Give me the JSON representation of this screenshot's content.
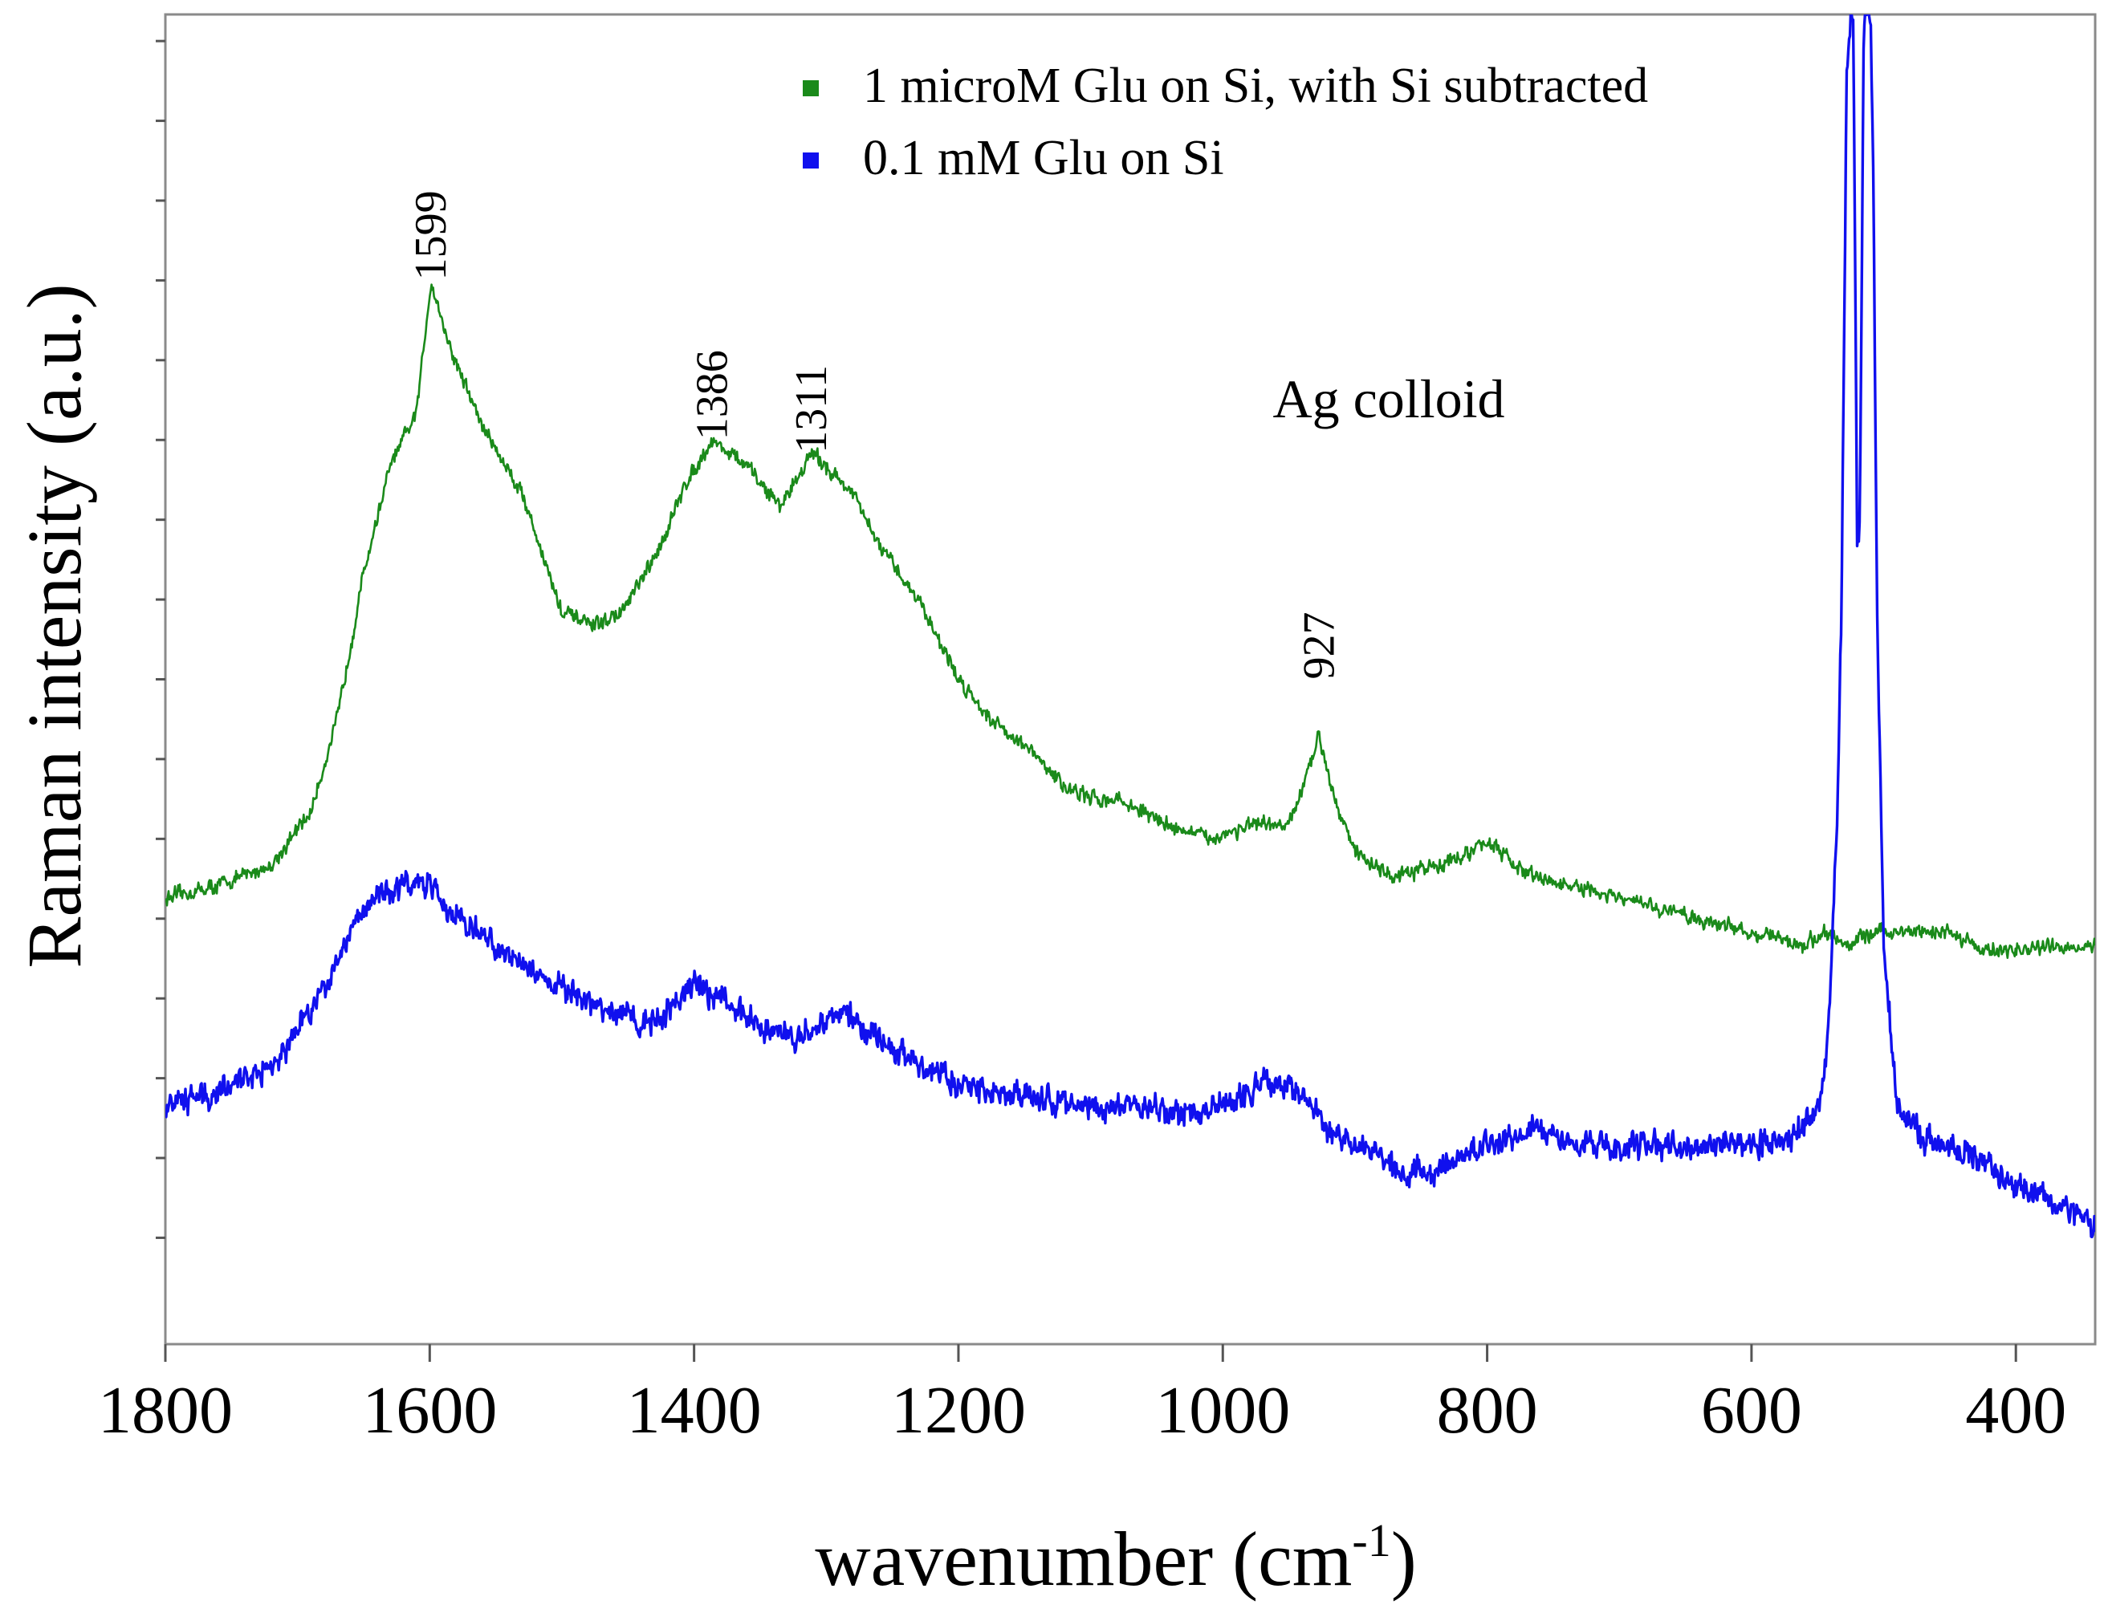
{
  "chart_data": {
    "type": "line",
    "title": "",
    "xlabel": "wavenumber (cm",
    "xlabel_superscript": "-1",
    "xlabel_suffix": ")",
    "ylabel": "Raman intensity (a.u.)",
    "xlim": [
      1800,
      340
    ],
    "ylim": [
      0,
      100
    ],
    "x_ticks": [
      1800,
      1600,
      1400,
      1200,
      1000,
      800,
      600,
      400
    ],
    "x_tick_labels": [
      "1800",
      "1600",
      "1400",
      "1200",
      "1000",
      "800",
      "600",
      "400"
    ],
    "y_minor_ticks": [
      8,
      14,
      20,
      26,
      32,
      38,
      44,
      50,
      56,
      62,
      68,
      74,
      80,
      86,
      92,
      98
    ],
    "legend": {
      "placement": "top-right",
      "entries": [
        {
          "label": "1 microM Glu on Si, with Si subtracted",
          "color": "#1a8a1a"
        },
        {
          "label": "0.1 mM Glu on Si",
          "color": "#1010ee"
        }
      ]
    },
    "annotations": [
      {
        "text": "Ag colloid",
        "x": 1000,
        "y": 77
      }
    ],
    "peak_labels": [
      {
        "text": "1599",
        "x": 1599,
        "y": 80
      },
      {
        "text": "1386",
        "x": 1386,
        "y": 68
      },
      {
        "text": "1311",
        "x": 1311,
        "y": 67
      },
      {
        "text": "927",
        "x": 927,
        "y": 50
      }
    ],
    "series": [
      {
        "name": "1 microM Glu on Si, with Si subtracted",
        "color": "#1a8a1a",
        "noise": 0.7,
        "x": [
          1800,
          1760,
          1720,
          1690,
          1670,
          1650,
          1630,
          1610,
          1599,
          1585,
          1560,
          1530,
          1500,
          1475,
          1455,
          1430,
          1405,
          1386,
          1360,
          1335,
          1311,
          1300,
          1280,
          1260,
          1230,
          1200,
          1175,
          1150,
          1120,
          1100,
          1080,
          1060,
          1040,
          1010,
          980,
          950,
          935,
          927,
          918,
          900,
          870,
          840,
          810,
          800,
          780,
          760,
          720,
          680,
          640,
          600,
          560,
          545,
          530,
          520,
          515,
          505,
          480,
          450,
          420,
          380,
          340
        ],
        "y": [
          33.5,
          34.5,
          36,
          40,
          47,
          58,
          66,
          70,
          80,
          75,
          69,
          64,
          55,
          54,
          55,
          59,
          65,
          68,
          66,
          63,
          67,
          66,
          64,
          60,
          56,
          50,
          47,
          45,
          42,
          41,
          41,
          40,
          39,
          38,
          39,
          39,
          43,
          46,
          42,
          37,
          35,
          36,
          37,
          38,
          36,
          35,
          34,
          33,
          32,
          31,
          30,
          31,
          30,
          30.5,
          30.5,
          31,
          31,
          31,
          29.5,
          29.8,
          30
        ]
      },
      {
        "name": "0.1 mM Glu on Si",
        "color": "#1010ee",
        "noise": 1.2,
        "x": [
          1800,
          1760,
          1720,
          1690,
          1660,
          1640,
          1620,
          1600,
          1580,
          1550,
          1520,
          1490,
          1460,
          1430,
          1400,
          1380,
          1350,
          1320,
          1290,
          1260,
          1230,
          1200,
          1170,
          1140,
          1110,
          1080,
          1050,
          1020,
          990,
          960,
          940,
          920,
          890,
          860,
          840,
          800,
          760,
          720,
          680,
          640,
          600,
          570,
          550,
          545,
          540,
          535,
          532,
          530,
          528,
          525,
          523,
          520,
          518,
          515,
          512,
          510,
          508,
          505,
          500,
          490,
          470,
          440,
          400,
          370,
          340
        ],
        "y": [
          18,
          19,
          21,
          25,
          31,
          34,
          34.5,
          34.5,
          32,
          30,
          28,
          26,
          25,
          24,
          27,
          26,
          24,
          23,
          25,
          23,
          21,
          19.5,
          19,
          18.5,
          18,
          18,
          17.5,
          17.5,
          18.5,
          20,
          19,
          16,
          14.5,
          13,
          13,
          15,
          16,
          15,
          15,
          15,
          15,
          15.5,
          18,
          20,
          28,
          40,
          55,
          75,
          96,
          100,
          100,
          60,
          62,
          100,
          100,
          100,
          90,
          55,
          30,
          18,
          15.5,
          14.5,
          12,
          10.5,
          9
        ]
      }
    ]
  }
}
